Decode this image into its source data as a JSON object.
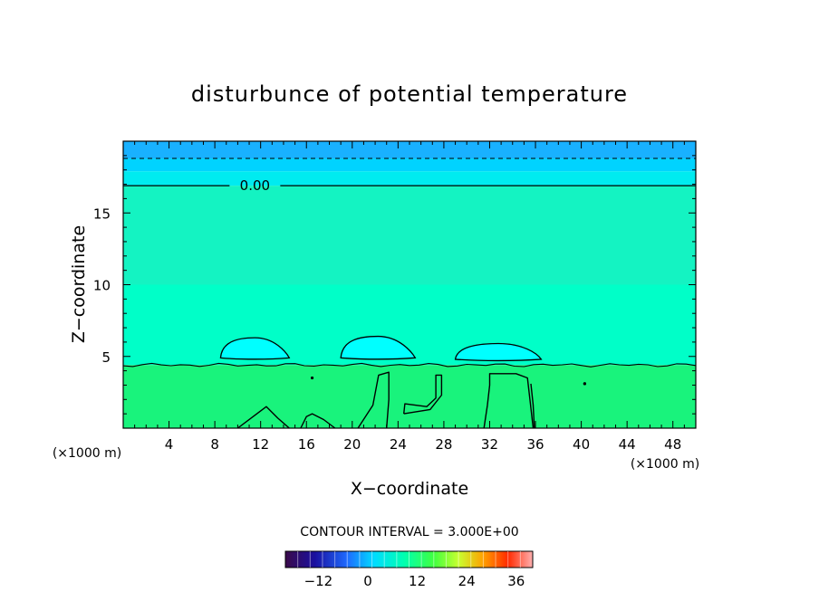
{
  "chart_data": {
    "type": "heatmap",
    "title": "disturbunce of potential temperature",
    "xlabel": "X−coordinate",
    "ylabel": "Z−coordinate",
    "x_unit_left": "(×1000 m)",
    "x_unit_right": "(×1000 m)",
    "xlim": [
      0,
      50
    ],
    "ylim": [
      0,
      20
    ],
    "x_ticks": [
      4,
      8,
      12,
      16,
      20,
      24,
      28,
      32,
      36,
      40,
      44,
      48
    ],
    "y_ticks": [
      5,
      10,
      15
    ],
    "contour_label": "0.00",
    "contour_label_value": 0.0,
    "contour_interval_text": "CONTOUR INTERVAL = 3.000E+00",
    "contour_interval": 3.0,
    "colorbar_ticks": [
      "−12",
      "0",
      "12",
      "24",
      "36"
    ],
    "colorbar_range": [
      -20,
      40
    ],
    "layers": [
      {
        "z_from": 18.8,
        "z_to": 20.0,
        "color": "#19b1ff"
      },
      {
        "z_from": 17.9,
        "z_to": 18.8,
        "color": "#00d3ff"
      },
      {
        "z_from": 16.9,
        "z_to": 17.9,
        "color": "#00ebf0"
      },
      {
        "z_from": 10.0,
        "z_to": 16.9,
        "color": "#14f3c2"
      },
      {
        "z_from": 4.4,
        "z_to": 10.0,
        "color": "#00ffc8"
      },
      {
        "z_from": 0.0,
        "z_to": 4.4,
        "color": "#19f37c"
      }
    ],
    "zero_contour_z": 16.9,
    "dashed_contour_z": 18.8,
    "boundary_contour_z": 4.4,
    "bubbles": [
      {
        "x_from": 8.5,
        "x_to": 14.5,
        "z_base": 4.9,
        "z_top": 6.3,
        "color": "#00ffff"
      },
      {
        "x_from": 19.0,
        "x_to": 25.5,
        "z_base": 4.9,
        "z_top": 6.4,
        "color": "#00ffff"
      },
      {
        "x_from": 29.0,
        "x_to": 36.5,
        "z_base": 4.8,
        "z_top": 5.9,
        "color": "#00ffff"
      }
    ],
    "low_contours": [
      [
        [
          10.0,
          0.0
        ],
        [
          11.5,
          0.9
        ],
        [
          12.5,
          1.5
        ],
        [
          13.5,
          0.7
        ],
        [
          14.5,
          0.0
        ]
      ],
      [
        [
          15.5,
          0.0
        ],
        [
          16.0,
          0.8
        ],
        [
          16.5,
          1.0
        ],
        [
          17.5,
          0.6
        ],
        [
          18.5,
          0.0
        ]
      ],
      [
        [
          20.5,
          0.0
        ],
        [
          21.8,
          1.6
        ],
        [
          22.3,
          3.7
        ],
        [
          23.2,
          3.9
        ],
        [
          23.2,
          2.0
        ],
        [
          23.0,
          0.0
        ]
      ],
      [
        [
          24.5,
          1.0
        ],
        [
          26.8,
          1.3
        ],
        [
          27.8,
          2.3
        ],
        [
          27.8,
          3.7
        ],
        [
          27.3,
          3.7
        ],
        [
          27.3,
          2.1
        ],
        [
          26.5,
          1.5
        ],
        [
          24.6,
          1.7
        ],
        [
          24.5,
          1.0
        ]
      ],
      [
        [
          31.5,
          0.0
        ],
        [
          31.8,
          1.6
        ],
        [
          32.0,
          3.0
        ],
        [
          32.0,
          3.8
        ],
        [
          34.3,
          3.8
        ],
        [
          35.3,
          3.5
        ],
        [
          35.6,
          1.4
        ],
        [
          35.8,
          0.0
        ]
      ],
      [
        [
          35.9,
          0.0
        ],
        [
          35.8,
          1.6
        ],
        [
          35.6,
          3.1
        ]
      ]
    ],
    "dots": [
      [
        16.5,
        3.5
      ],
      [
        40.3,
        3.1
      ],
      [
        40.3,
        3.1
      ]
    ]
  }
}
